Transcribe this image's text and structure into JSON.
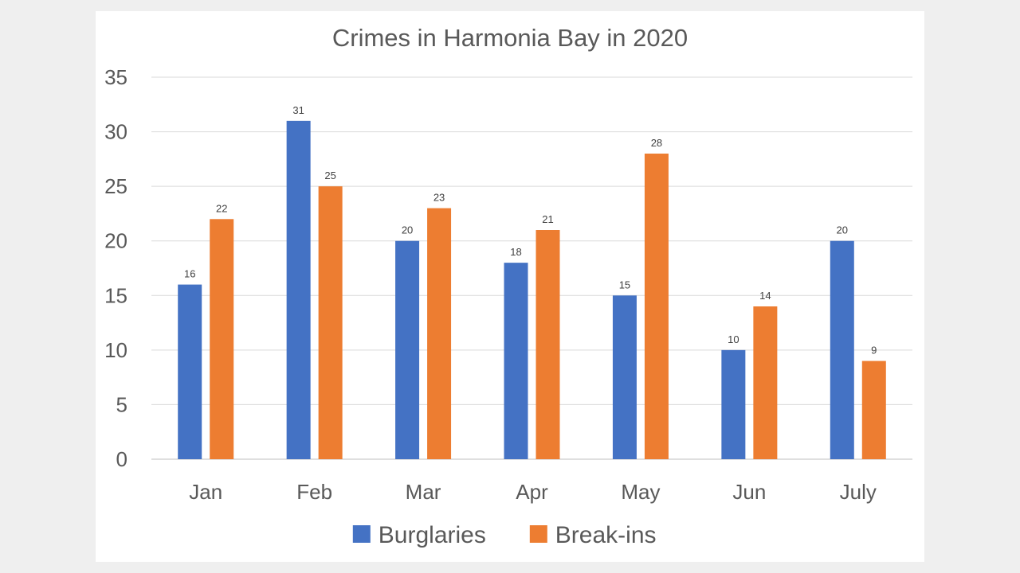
{
  "chart_data": {
    "type": "bar",
    "title": "Crimes in Harmonia Bay in 2020",
    "xlabel": "",
    "ylabel": "",
    "categories": [
      "Jan",
      "Feb",
      "Mar",
      "Apr",
      "May",
      "Jun",
      "July"
    ],
    "series": [
      {
        "name": "Burglaries",
        "color": "#4472C4",
        "values": [
          16,
          31,
          20,
          18,
          15,
          10,
          20
        ]
      },
      {
        "name": "Break-ins",
        "color": "#ED7D31",
        "values": [
          22,
          25,
          23,
          21,
          28,
          14,
          9
        ]
      }
    ],
    "ylim": [
      0,
      35
    ],
    "yticks": [
      0,
      5,
      10,
      15,
      20,
      25,
      30,
      35
    ],
    "grid": true,
    "legend": "bottom"
  }
}
